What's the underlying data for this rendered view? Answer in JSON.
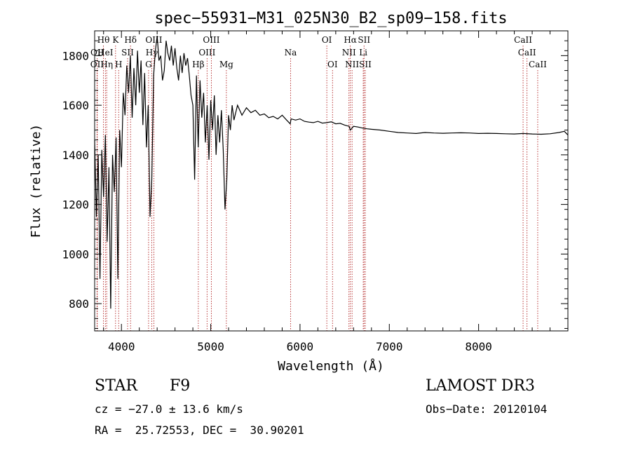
{
  "chart_data": {
    "type": "line",
    "title": "spec−55931−M31_025N30_B2_sp09−158.fits",
    "xlabel": "Wavelength (Å)",
    "ylabel": "Flux (relative)",
    "xlim": [
      3700,
      9000
    ],
    "ylim": [
      690,
      1900
    ],
    "xticks": [
      4000,
      5000,
      6000,
      7000,
      8000
    ],
    "yticks": [
      800,
      1000,
      1200,
      1400,
      1600,
      1800
    ],
    "grid": false,
    "series": [
      {
        "name": "spectrum",
        "x": [
          3700,
          3720,
          3740,
          3760,
          3780,
          3800,
          3820,
          3840,
          3860,
          3880,
          3900,
          3920,
          3940,
          3960,
          3980,
          4000,
          4020,
          4040,
          4060,
          4080,
          4100,
          4120,
          4140,
          4160,
          4180,
          4200,
          4220,
          4240,
          4260,
          4280,
          4300,
          4320,
          4340,
          4360,
          4380,
          4400,
          4420,
          4440,
          4460,
          4480,
          4500,
          4520,
          4540,
          4560,
          4580,
          4600,
          4620,
          4640,
          4660,
          4680,
          4700,
          4720,
          4740,
          4760,
          4780,
          4800,
          4820,
          4840,
          4860,
          4880,
          4900,
          4920,
          4940,
          4960,
          4980,
          5000,
          5020,
          5040,
          5060,
          5080,
          5100,
          5120,
          5140,
          5160,
          5180,
          5200,
          5220,
          5240,
          5260,
          5280,
          5300,
          5350,
          5400,
          5450,
          5500,
          5550,
          5600,
          5650,
          5700,
          5750,
          5800,
          5850,
          5890,
          5900,
          5950,
          6000,
          6050,
          6100,
          6150,
          6200,
          6250,
          6300,
          6350,
          6400,
          6450,
          6500,
          6550,
          6563,
          6600,
          6650,
          6700,
          6750,
          6800,
          6900,
          7000,
          7100,
          7200,
          7300,
          7400,
          7500,
          7600,
          7700,
          7800,
          7900,
          8000,
          8100,
          8200,
          8300,
          8400,
          8500,
          8600,
          8700,
          8800,
          8900,
          8960,
          9000
        ],
        "values": [
          1460,
          1150,
          1400,
          900,
          1420,
          1230,
          1480,
          1050,
          1350,
          780,
          1400,
          1250,
          1470,
          900,
          1500,
          1350,
          1650,
          1560,
          1760,
          1650,
          1800,
          1550,
          1750,
          1600,
          1820,
          1650,
          1780,
          1520,
          1730,
          1430,
          1600,
          1150,
          1300,
          1720,
          1820,
          1880,
          1780,
          1800,
          1700,
          1740,
          1860,
          1810,
          1780,
          1840,
          1760,
          1830,
          1750,
          1700,
          1800,
          1730,
          1810,
          1760,
          1790,
          1720,
          1640,
          1600,
          1300,
          1720,
          1430,
          1700,
          1550,
          1650,
          1450,
          1600,
          1380,
          1620,
          1500,
          1640,
          1400,
          1560,
          1450,
          1580,
          1420,
          1180,
          1300,
          1560,
          1500,
          1600,
          1540,
          1570,
          1600,
          1560,
          1590,
          1570,
          1580,
          1560,
          1565,
          1550,
          1555,
          1545,
          1560,
          1540,
          1525,
          1545,
          1540,
          1545,
          1535,
          1532,
          1530,
          1535,
          1528,
          1530,
          1533,
          1525,
          1527,
          1520,
          1515,
          1500,
          1515,
          1512,
          1508,
          1505,
          1503,
          1500,
          1495,
          1490,
          1488,
          1486,
          1490,
          1488,
          1487,
          1488,
          1489,
          1488,
          1486,
          1487,
          1486,
          1485,
          1484,
          1486,
          1484,
          1483,
          1485,
          1490,
          1495,
          1480
        ]
      }
    ],
    "spectral_lines": [
      {
        "label": "Hθ",
        "wavelength": 3798,
        "row": "top"
      },
      {
        "label": "OII",
        "wavelength": 3727,
        "row": "bottom"
      },
      {
        "label": "OII",
        "wavelength": 3729,
        "row": "mid"
      },
      {
        "label": "HeI",
        "wavelength": 3820,
        "row": "mid"
      },
      {
        "label": "Hη",
        "wavelength": 3835,
        "row": "bottom"
      },
      {
        "label": "K",
        "wavelength": 3934,
        "row": "top"
      },
      {
        "label": "SII",
        "wavelength": 4069,
        "row": "mid"
      },
      {
        "label": "H",
        "wavelength": 3969,
        "row": "bottom"
      },
      {
        "label": "Hδ",
        "wavelength": 4102,
        "row": "top"
      },
      {
        "label": "OIII",
        "wavelength": 4363,
        "row": "top"
      },
      {
        "label": "Hγ",
        "wavelength": 4340,
        "row": "mid"
      },
      {
        "label": "G",
        "wavelength": 4304,
        "row": "bottom"
      },
      {
        "label": "Hβ",
        "wavelength": 4861,
        "row": "bottom"
      },
      {
        "label": "OIII",
        "wavelength": 5007,
        "row": "top"
      },
      {
        "label": "OIII",
        "wavelength": 4959,
        "row": "mid"
      },
      {
        "label": "Mg",
        "wavelength": 5175,
        "row": "bottom"
      },
      {
        "label": "Na",
        "wavelength": 5894,
        "row": "mid"
      },
      {
        "label": "OI",
        "wavelength": 6300,
        "row": "top"
      },
      {
        "label": "OI",
        "wavelength": 6364,
        "row": "bottom"
      },
      {
        "label": "Hα",
        "wavelength": 6563,
        "row": "top"
      },
      {
        "label": "NII",
        "wavelength": 6548,
        "row": "mid"
      },
      {
        "label": "NII",
        "wavelength": 6583,
        "row": "bottom"
      },
      {
        "label": "SII",
        "wavelength": 6717,
        "row": "top"
      },
      {
        "label": "Li",
        "wavelength": 6708,
        "row": "mid"
      },
      {
        "label": "SII",
        "wavelength": 6731,
        "row": "bottom"
      },
      {
        "label": "CaII",
        "wavelength": 8498,
        "row": "top"
      },
      {
        "label": "CaII",
        "wavelength": 8542,
        "row": "mid"
      },
      {
        "label": "CaII",
        "wavelength": 8662,
        "row": "bottom"
      }
    ]
  },
  "info": {
    "object_class": "STAR",
    "subclass": "F9",
    "survey": "LAMOST DR3",
    "redshift_line": "cz = −27.0 ± 13.6 km/s",
    "obs_date_line": "Obs−Date: 20120104",
    "coords_line": "RA =  25.72553, DEC =  30.90201"
  }
}
